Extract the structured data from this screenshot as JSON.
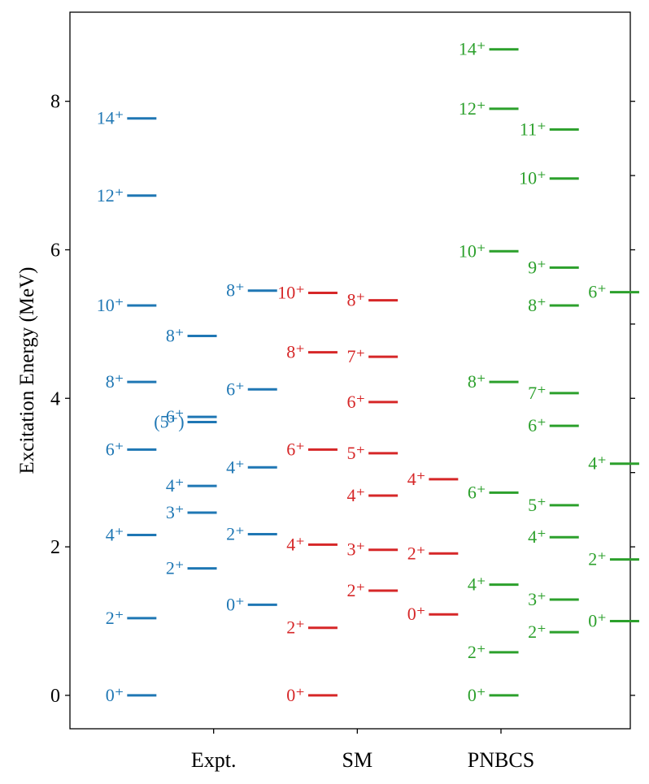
{
  "chart_data": {
    "type": "level_scheme",
    "ylabel": "Excitation Energy (MeV)",
    "ylim": [
      -0.45,
      9.2
    ],
    "yticks": [
      0,
      2,
      4,
      6,
      8
    ],
    "categories": [
      {
        "label": "Expt.",
        "x": 1.0
      },
      {
        "label": "SM",
        "x": 2.0
      },
      {
        "label": "PNBCS",
        "x": 3.0
      }
    ],
    "xlim": [
      0.0,
      3.9
    ],
    "colors": {
      "Expt.": "#1f77b4",
      "SM": "#d62728",
      "PNBCS": "#2ca02c"
    },
    "series": [
      {
        "group": "Expt.",
        "x": 0.5,
        "levels": [
          {
            "E": 0.0,
            "label": "0⁺"
          },
          {
            "E": 1.04,
            "label": "2⁺"
          },
          {
            "E": 2.16,
            "label": "4⁺"
          },
          {
            "E": 3.31,
            "label": "6⁺"
          },
          {
            "E": 4.22,
            "label": "8⁺"
          },
          {
            "E": 5.25,
            "label": "10⁺"
          },
          {
            "E": 6.73,
            "label": "12⁺"
          },
          {
            "E": 7.77,
            "label": "14⁺"
          }
        ]
      },
      {
        "group": "Expt.",
        "x": 0.92,
        "levels": [
          {
            "E": 1.71,
            "label": "2⁺"
          },
          {
            "E": 2.46,
            "label": "3⁺"
          },
          {
            "E": 2.82,
            "label": "4⁺"
          },
          {
            "E": 3.68,
            "label": "(5⁺)"
          },
          {
            "E": 3.75,
            "label": "6⁺"
          },
          {
            "E": 4.84,
            "label": "8⁺"
          }
        ]
      },
      {
        "group": "Expt.",
        "x": 1.34,
        "levels": [
          {
            "E": 1.22,
            "label": "0⁺"
          },
          {
            "E": 2.17,
            "label": "2⁺"
          },
          {
            "E": 3.07,
            "label": "4⁺"
          },
          {
            "E": 4.12,
            "label": "6⁺"
          },
          {
            "E": 5.45,
            "label": "8⁺"
          }
        ]
      },
      {
        "group": "SM",
        "x": 1.76,
        "levels": [
          {
            "E": 0.0,
            "label": "0⁺"
          },
          {
            "E": 0.91,
            "label": "2⁺"
          },
          {
            "E": 2.03,
            "label": "4⁺"
          },
          {
            "E": 3.31,
            "label": "6⁺"
          },
          {
            "E": 4.62,
            "label": "8⁺"
          },
          {
            "E": 5.42,
            "label": "10⁺"
          }
        ]
      },
      {
        "group": "SM",
        "x": 2.18,
        "levels": [
          {
            "E": 1.41,
            "label": "2⁺"
          },
          {
            "E": 1.96,
            "label": "3⁺"
          },
          {
            "E": 2.69,
            "label": "4⁺"
          },
          {
            "E": 3.26,
            "label": "5⁺"
          },
          {
            "E": 3.95,
            "label": "6⁺"
          },
          {
            "E": 4.56,
            "label": "7⁺"
          },
          {
            "E": 5.32,
            "label": "8⁺"
          }
        ]
      },
      {
        "group": "SM",
        "x": 2.6,
        "levels": [
          {
            "E": 1.09,
            "label": "0⁺"
          },
          {
            "E": 1.91,
            "label": "2⁺"
          },
          {
            "E": 2.91,
            "label": "4⁺"
          }
        ]
      },
      {
        "group": "PNBCS",
        "x": 3.02,
        "levels": [
          {
            "E": 0.0,
            "label": "0⁺"
          },
          {
            "E": 0.58,
            "label": "2⁺"
          },
          {
            "E": 1.49,
            "label": "4⁺"
          },
          {
            "E": 2.73,
            "label": "6⁺"
          },
          {
            "E": 4.22,
            "label": "8⁺"
          },
          {
            "E": 5.98,
            "label": "10⁺"
          },
          {
            "E": 7.9,
            "label": "12⁺"
          },
          {
            "E": 8.7,
            "label": "14⁺"
          }
        ]
      },
      {
        "group": "PNBCS",
        "x": 3.44,
        "levels": [
          {
            "E": 0.85,
            "label": "2⁺"
          },
          {
            "E": 1.29,
            "label": "3⁺"
          },
          {
            "E": 2.13,
            "label": "4⁺"
          },
          {
            "E": 2.56,
            "label": "5⁺"
          },
          {
            "E": 3.63,
            "label": "6⁺"
          },
          {
            "E": 4.07,
            "label": "7⁺"
          },
          {
            "E": 5.25,
            "label": "8⁺"
          },
          {
            "E": 5.76,
            "label": "9⁺"
          },
          {
            "E": 6.96,
            "label": "10⁺"
          },
          {
            "E": 7.62,
            "label": "11⁺"
          }
        ]
      },
      {
        "group": "PNBCS",
        "x": 3.86,
        "levels": [
          {
            "E": 1.0,
            "label": "0⁺"
          },
          {
            "E": 1.83,
            "label": "2⁺"
          },
          {
            "E": 3.12,
            "label": "4⁺"
          },
          {
            "E": 5.43,
            "label": "6⁺"
          }
        ]
      }
    ]
  }
}
